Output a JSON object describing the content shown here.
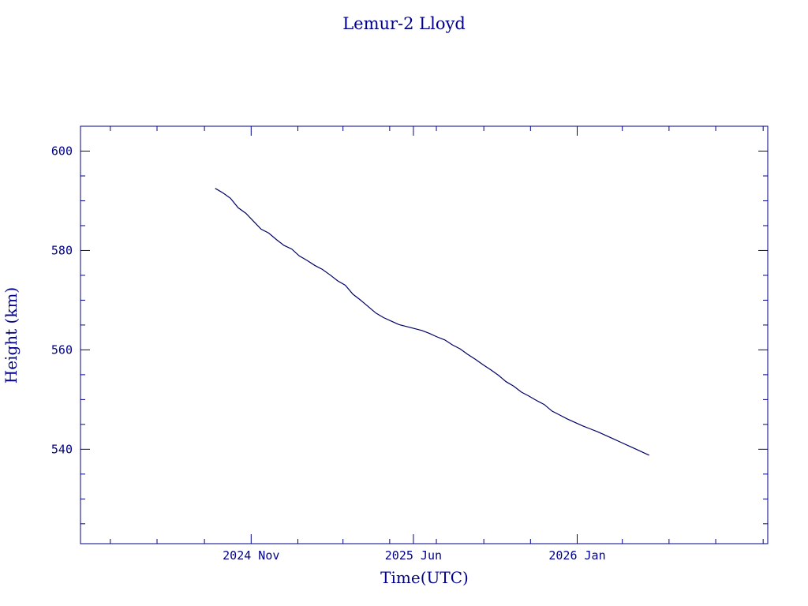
{
  "chart_data": {
    "type": "line",
    "title": "Lemur-2 Lloyd",
    "xlabel": "Time(UTC)",
    "ylabel": "Height (km)",
    "ylim": [
      521,
      605
    ],
    "xlim": [
      "2024-03-23",
      "2026-09-07"
    ],
    "yticks": [
      540,
      560,
      580,
      600
    ],
    "xticks": [
      {
        "label": "2024 Nov",
        "date": "2024-11-01"
      },
      {
        "label": "2025 Jun",
        "date": "2025-06-01"
      },
      {
        "label": "2026 Jan",
        "date": "2026-01-01"
      }
    ],
    "grid": false,
    "colors": {
      "axes": "#00008b",
      "line": "#000066"
    },
    "series": [
      {
        "x": [
          "2024-09-15",
          "2024-09-25",
          "2024-10-05",
          "2024-10-15",
          "2024-10-25",
          "2024-11-04",
          "2024-11-14",
          "2024-11-24",
          "2024-12-04",
          "2024-12-14",
          "2024-12-24",
          "2025-01-03",
          "2025-01-13",
          "2025-01-23",
          "2025-02-02",
          "2025-02-12",
          "2025-02-22",
          "2025-03-04",
          "2025-03-14",
          "2025-03-24",
          "2025-04-03",
          "2025-04-13",
          "2025-04-23",
          "2025-05-03",
          "2025-05-13",
          "2025-05-23",
          "2025-06-02",
          "2025-06-12",
          "2025-06-22",
          "2025-07-02",
          "2025-07-12",
          "2025-07-22",
          "2025-08-01",
          "2025-08-11",
          "2025-08-21",
          "2025-08-31",
          "2025-09-10",
          "2025-09-20",
          "2025-09-30",
          "2025-10-10",
          "2025-10-20",
          "2025-10-30",
          "2025-11-09",
          "2025-11-19",
          "2025-11-29",
          "2025-12-09",
          "2025-12-19",
          "2025-12-29",
          "2026-01-08",
          "2026-01-18",
          "2026-01-28",
          "2026-02-07",
          "2026-02-17",
          "2026-02-27",
          "2026-03-09",
          "2026-03-19",
          "2026-03-29",
          "2026-04-05"
        ],
        "y": [
          592.5,
          591.6,
          590.5,
          588.6,
          587.5,
          585.9,
          584.3,
          583.5,
          582.2,
          581.0,
          580.3,
          578.9,
          578.0,
          577.0,
          576.2,
          575.1,
          573.9,
          573.0,
          571.2,
          570.0,
          568.7,
          567.4,
          566.5,
          565.8,
          565.1,
          564.7,
          564.3,
          563.9,
          563.3,
          562.6,
          562.0,
          561.0,
          560.2,
          559.1,
          558.1,
          557.0,
          556.0,
          554.9,
          553.6,
          552.7,
          551.5,
          550.7,
          549.8,
          549.0,
          547.7,
          546.9,
          546.1,
          545.4,
          544.7,
          544.1,
          543.5,
          542.8,
          542.1,
          541.4,
          540.7,
          540.0,
          539.3,
          538.8
        ]
      }
    ]
  }
}
